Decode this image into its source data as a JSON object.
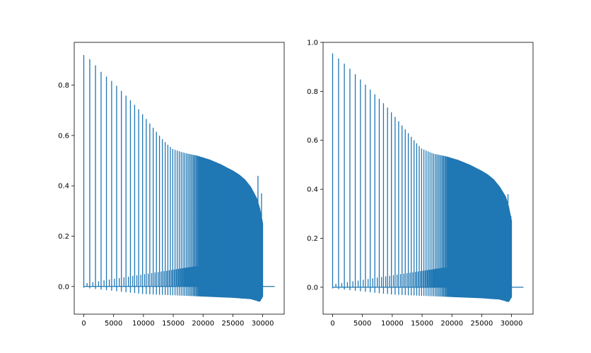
{
  "chart_data": [
    {
      "type": "line",
      "title": "",
      "xlabel": "",
      "ylabel": "",
      "xlim": [
        -1600,
        33600
      ],
      "ylim": [
        -0.11,
        0.97
      ],
      "x_ticks": [
        0,
        5000,
        10000,
        15000,
        20000,
        25000,
        30000
      ],
      "x_tick_labels": [
        "0",
        "5000",
        "10000",
        "15000",
        "20000",
        "25000",
        "30000"
      ],
      "y_ticks": [
        0.0,
        0.2,
        0.4,
        0.6,
        0.8
      ],
      "y_tick_labels": [
        "0.0",
        "0.2",
        "0.4",
        "0.6",
        "0.8"
      ],
      "color": "#1f77b4",
      "grid": false,
      "x_max": 32000,
      "spike_envelope": {
        "x": [
          0,
          1200,
          3000,
          5000,
          7000,
          9000,
          11000,
          13000,
          14000,
          15000,
          17000,
          19000,
          21000,
          23000,
          25000,
          26000,
          27000,
          28000,
          29000,
          29500,
          30000
        ],
        "y": [
          0.92,
          0.9,
          0.85,
          0.81,
          0.76,
          0.71,
          0.65,
          0.59,
          0.565,
          0.545,
          0.53,
          0.52,
          0.505,
          0.485,
          0.46,
          0.445,
          0.425,
          0.395,
          0.35,
          0.31,
          0.25
        ]
      },
      "dip_envelope": {
        "x": [
          0,
          10000,
          20000,
          25000,
          28000,
          29500,
          30000
        ],
        "y": [
          -0.005,
          -0.03,
          -0.04,
          -0.045,
          -0.05,
          -0.06,
          -0.04
        ]
      },
      "secondary_spike_level": [
        0.01,
        0.08
      ],
      "outliers": [
        {
          "x": 29200,
          "y": 0.44
        },
        {
          "x": 29800,
          "y": 0.37
        },
        {
          "x": 29200,
          "y": -0.06
        }
      ]
    },
    {
      "type": "line",
      "title": "",
      "xlabel": "",
      "ylabel": "",
      "xlim": [
        -1600,
        33600
      ],
      "ylim": [
        -0.11,
        1.0
      ],
      "x_ticks": [
        0,
        5000,
        10000,
        15000,
        20000,
        25000,
        30000
      ],
      "x_tick_labels": [
        "0",
        "5000",
        "10000",
        "15000",
        "20000",
        "25000",
        "30000"
      ],
      "y_ticks": [
        0.0,
        0.2,
        0.4,
        0.6,
        0.8,
        1.0
      ],
      "y_tick_labels": [
        "0.0",
        "0.2",
        "0.4",
        "0.6",
        "0.8",
        "1.0"
      ],
      "color": "#1f77b4",
      "grid": false,
      "x_max": 32000,
      "spike_envelope": {
        "x": [
          0,
          1200,
          3000,
          5000,
          7000,
          9000,
          11000,
          13000,
          14000,
          15000,
          17000,
          19000,
          21000,
          23000,
          25000,
          26000,
          27000,
          28000,
          29000,
          29500,
          30000
        ],
        "y": [
          0.955,
          0.93,
          0.89,
          0.84,
          0.79,
          0.74,
          0.68,
          0.62,
          0.59,
          0.565,
          0.545,
          0.535,
          0.52,
          0.5,
          0.475,
          0.46,
          0.44,
          0.41,
          0.37,
          0.33,
          0.27
        ]
      },
      "dip_envelope": {
        "x": [
          0,
          10000,
          20000,
          25000,
          28000,
          29500,
          30000
        ],
        "y": [
          -0.005,
          -0.03,
          -0.04,
          -0.045,
          -0.05,
          -0.06,
          -0.04
        ]
      },
      "secondary_spike_level": [
        0.01,
        0.08
      ],
      "outliers": [
        {
          "x": 29400,
          "y": 0.38
        },
        {
          "x": 29900,
          "y": 0.29
        },
        {
          "x": 29200,
          "y": -0.06
        }
      ]
    }
  ]
}
